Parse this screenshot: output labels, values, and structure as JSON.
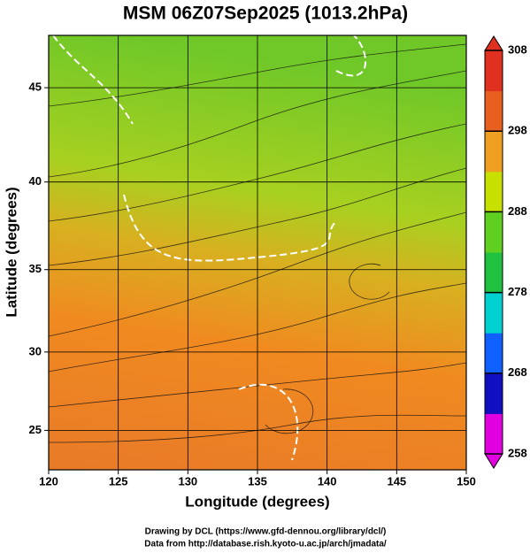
{
  "map": {
    "type": "map",
    "title": "MSM 06Z07Sep2025 (1013.2hPa)",
    "x_label": "Longitude (degrees)",
    "y_label": "Latitude  (degrees)",
    "xlim": [
      120,
      150
    ],
    "xticks": [
      120,
      125,
      130,
      135,
      140,
      145,
      150
    ],
    "ylim": [
      22.4,
      47.6
    ],
    "yticks": [
      25,
      30,
      35,
      40,
      45
    ],
    "projection": "mercator",
    "grid": true,
    "colorbar": {
      "lim": [
        258,
        308
      ],
      "ticks": [
        258,
        268,
        278,
        288,
        298,
        308
      ],
      "colors": [
        "#e000e0",
        "#1010c0",
        "#1060ff",
        "#00d0d0",
        "#20c040",
        "#60d020",
        "#c8e000",
        "#f0a020",
        "#e86020",
        "#e03020"
      ]
    },
    "footer": [
      "Drawing by DCL (https://www.gfd-dennou.org/library/dcl/)",
      "Data from http://database.rish.kyoto-u.ac.jp/arch/jmadata/"
    ]
  }
}
